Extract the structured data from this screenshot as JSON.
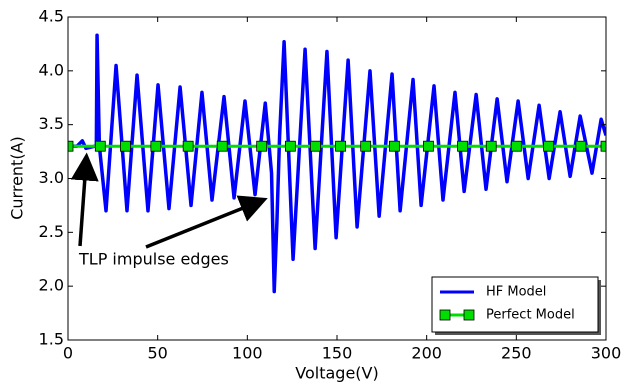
{
  "chart_data": {
    "type": "line",
    "xlabel": "Voltage(V)",
    "ylabel": "Current(A)",
    "annotation": "TLP impulse edges",
    "xlim": [
      0,
      300
    ],
    "ylim": [
      1.5,
      4.5
    ],
    "xticks": [
      0,
      50,
      100,
      150,
      200,
      250,
      300
    ],
    "yticks": [
      1.5,
      {
        "value": 2,
        "label": "2.0"
      },
      2.5,
      {
        "value": 3,
        "label": "3.0"
      },
      3.5,
      {
        "value": 4,
        "label": "4.0"
      },
      4.5
    ],
    "legend": "lower right",
    "grid": false,
    "series": [
      {
        "name": "HF Model",
        "color": "#0000ff",
        "marker": false,
        "x": [
          0,
          5,
          8,
          10,
          15,
          15.8,
          16.2,
          17.5,
          21.2,
          26.8,
          32.9,
          38.5,
          44.6,
          50.2,
          56.3,
          62.5,
          68.6,
          74.7,
          80.3,
          87,
          92.6,
          98.7,
          104.3,
          110,
          113.5,
          115,
          116.5,
          118,
          120.5,
          125.5,
          132.2,
          137.8,
          144.4,
          149.5,
          156.2,
          161.2,
          168.4,
          173.5,
          180.7,
          185.2,
          192.4,
          196.9,
          204.1,
          209.1,
          215.8,
          220.9,
          227.6,
          233.1,
          239.3,
          244.8,
          251,
          256.6,
          262.7,
          268.3,
          274.4,
          280,
          285.6,
          292.2,
          297.3,
          300
        ],
        "values": [
          3.3,
          3.3,
          3.35,
          3.28,
          3.3,
          3.3,
          4.33,
          3.3,
          2.7,
          4.05,
          2.7,
          3.96,
          2.7,
          3.87,
          2.72,
          3.85,
          2.75,
          3.8,
          2.8,
          3.76,
          2.82,
          3.72,
          2.85,
          3.7,
          3.05,
          1.95,
          2.6,
          3.4,
          4.27,
          2.25,
          4.2,
          2.35,
          4.18,
          2.45,
          4.1,
          2.55,
          4.0,
          2.65,
          3.97,
          2.7,
          3.92,
          2.75,
          3.86,
          2.8,
          3.8,
          2.88,
          3.78,
          2.9,
          3.74,
          2.97,
          3.72,
          3.0,
          3.68,
          3.0,
          3.62,
          3.02,
          3.58,
          3.05,
          3.55,
          3.4
        ]
      },
      {
        "name": "Perfect Model",
        "color": "#00dd00",
        "marker": true,
        "x": [
          0,
          18,
          32,
          49,
          67,
          86,
          108,
          124,
          138,
          152,
          166,
          182,
          201,
          220,
          236,
          250,
          268,
          286,
          300
        ],
        "values": [
          3.3,
          3.3,
          3.3,
          3.3,
          3.3,
          3.3,
          3.3,
          3.3,
          3.3,
          3.3,
          3.3,
          3.3,
          3.3,
          3.3,
          3.3,
          3.3,
          3.3,
          3.3,
          3.3
        ]
      }
    ]
  }
}
